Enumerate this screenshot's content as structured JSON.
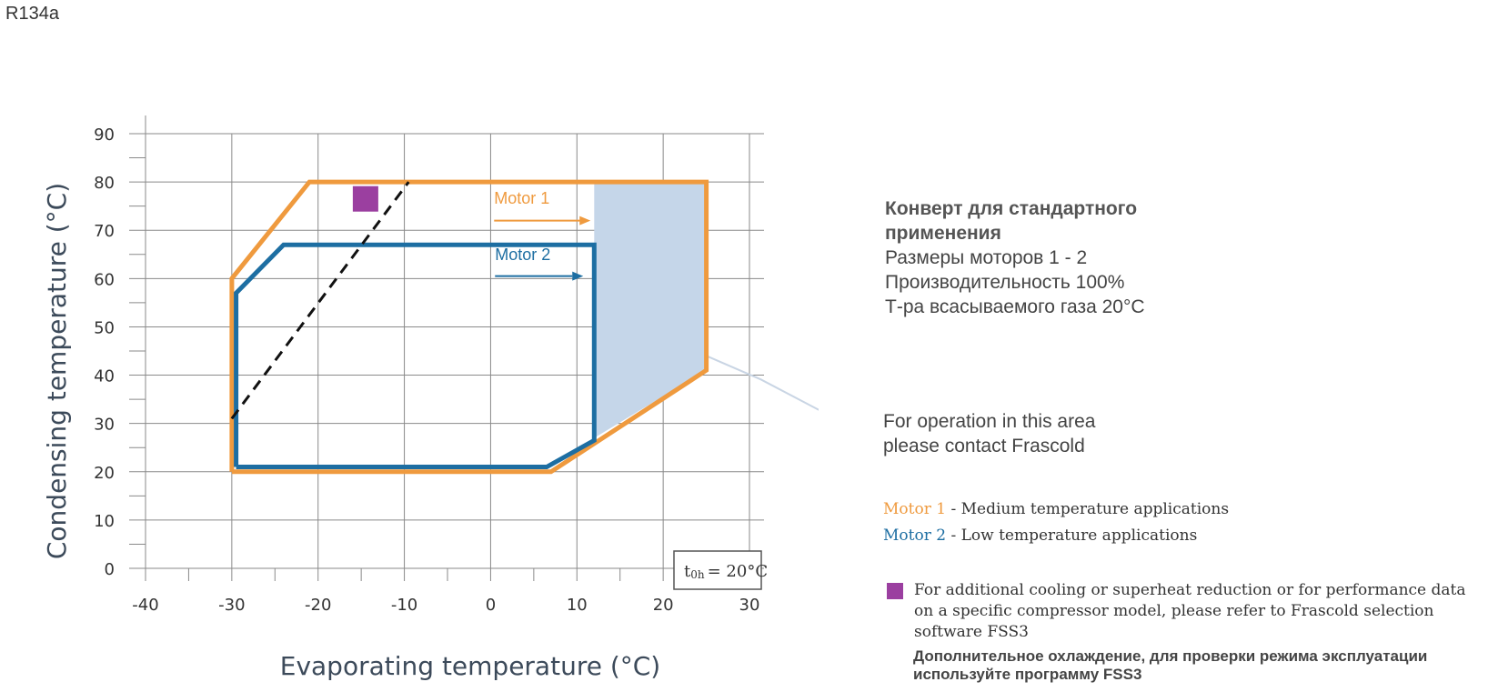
{
  "refrigerant": "R134a",
  "chart_data": {
    "type": "area",
    "xlabel": "Evaporating temperature (°C)",
    "ylabel": "Condensing temperature (°C)",
    "xlim": [
      -40,
      30
    ],
    "ylim": [
      0,
      90
    ],
    "xticks": [
      -40,
      -30,
      -20,
      -10,
      0,
      10,
      20,
      30
    ],
    "yticks": [
      0,
      10,
      20,
      30,
      40,
      50,
      60,
      70,
      80,
      90
    ],
    "grid": true,
    "series": [
      {
        "name": "Motor 1",
        "color": "#ef9a3e",
        "points": [
          [
            -30,
            20
          ],
          [
            7,
            20
          ],
          [
            25,
            41
          ],
          [
            25,
            80
          ],
          [
            -21,
            80
          ],
          [
            -30,
            60
          ],
          [
            -30,
            20
          ]
        ]
      },
      {
        "name": "Motor 2",
        "color": "#1d6ea2",
        "points": [
          [
            -29.5,
            21
          ],
          [
            6.5,
            21
          ],
          [
            12,
            26.5
          ],
          [
            12,
            67
          ],
          [
            -24,
            67
          ],
          [
            -29.5,
            57
          ],
          [
            -29.5,
            21
          ]
        ]
      }
    ],
    "contact_area": {
      "color": "#c5d6e9",
      "points": [
        [
          12,
          80
        ],
        [
          25,
          80
        ],
        [
          25,
          41
        ],
        [
          12,
          27
        ]
      ]
    },
    "dashed_line": [
      [
        -30,
        31
      ],
      [
        -9.5,
        80
      ]
    ],
    "marker": {
      "x": -14.5,
      "y": 76.5,
      "color": "#9b3fa0"
    },
    "annotations": {
      "motor1_label": "Motor 1",
      "motor2_label": "Motor 2",
      "suction_box_prefix": "t",
      "suction_box_sub": "0h",
      "suction_box_value": "= 20°C"
    }
  },
  "info": {
    "title_line1": "Конверт для стандартного",
    "title_line2": "применения",
    "line1": "Размеры моторов 1 - 2",
    "line2": "Производительность 100%",
    "line3": "Т-ра всасываемого газа 20°C"
  },
  "contact": {
    "line1": "For operation in this area",
    "line2": "please contact Frascold"
  },
  "legend": {
    "motor1_name": "Motor 1",
    "motor1_desc": " - Medium temperature applications",
    "motor2_name": "Motor 2",
    "motor2_desc": " - Low temperature applications"
  },
  "note": {
    "text": "For additional cooling or superheat reduction or for performance data on a specific compressor model, please refer to Frascold selection software FSS3",
    "ru_text": "Дополнительное охлаждение, для проверки режима эксплуатации используйте программу FSS3"
  }
}
